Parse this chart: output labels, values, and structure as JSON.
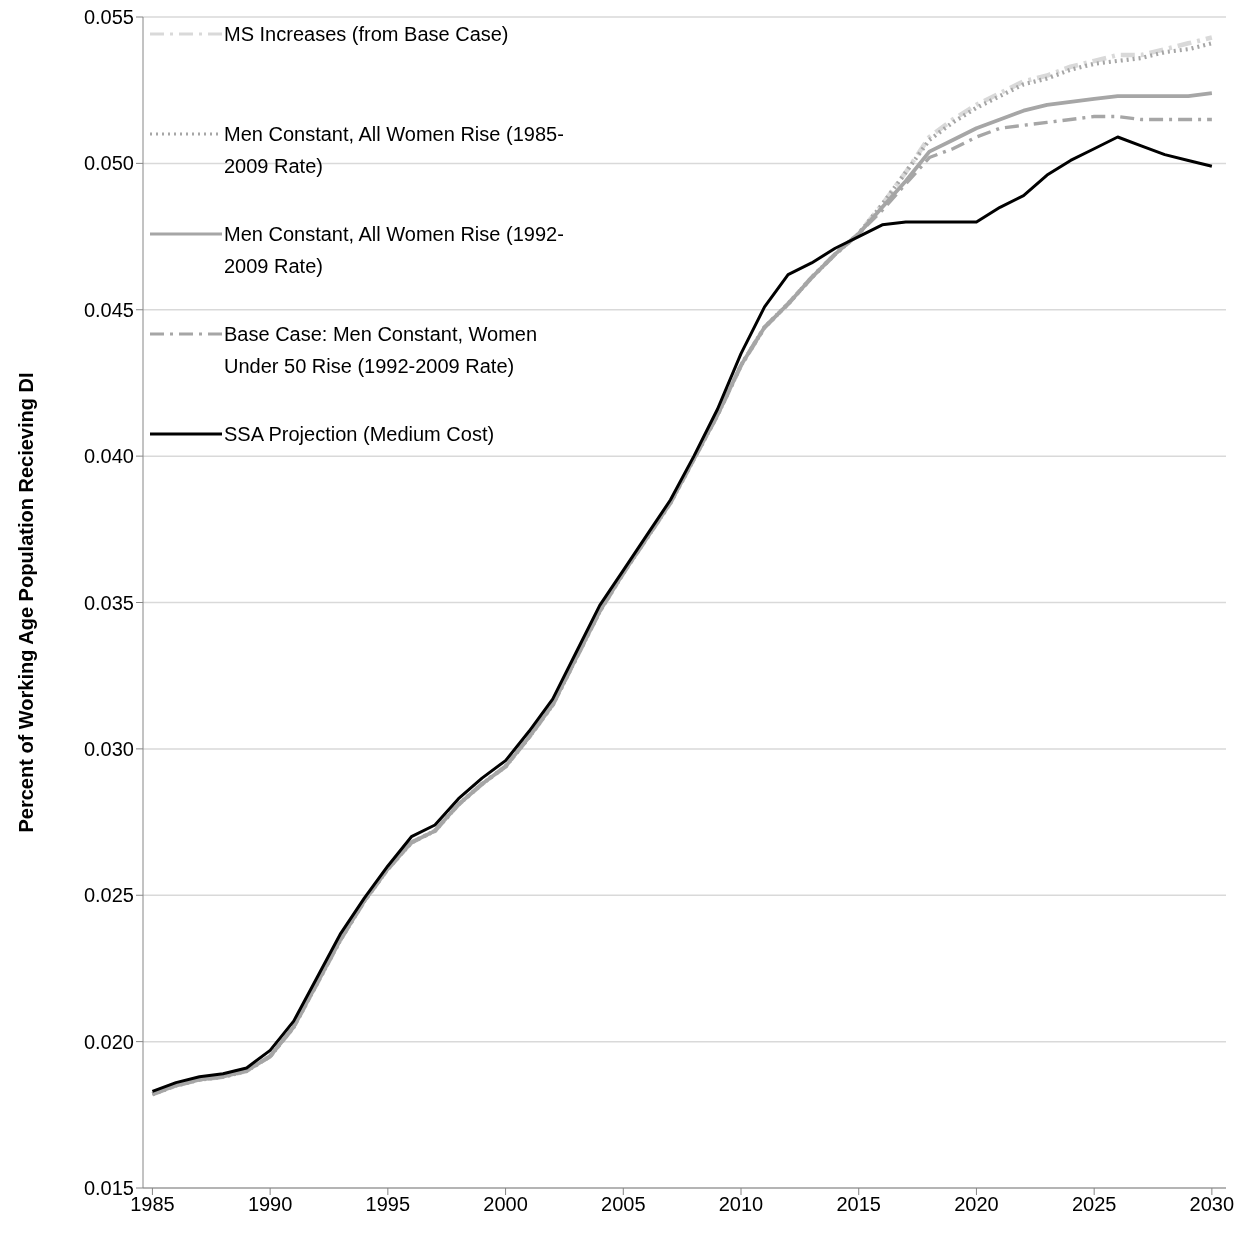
{
  "chart_data": {
    "type": "line",
    "ylabel": "Percent of Working Age Population Recieving DI",
    "x": [
      1985,
      1986,
      1987,
      1988,
      1989,
      1990,
      1991,
      1992,
      1993,
      1994,
      1995,
      1996,
      1997,
      1998,
      1999,
      2000,
      2001,
      2002,
      2003,
      2004,
      2005,
      2006,
      2007,
      2008,
      2009,
      2010,
      2011,
      2012,
      2013,
      2014,
      2015,
      2016,
      2017,
      2018,
      2019,
      2020,
      2021,
      2022,
      2023,
      2024,
      2025,
      2026,
      2027,
      2028,
      2029,
      2030
    ],
    "series": [
      {
        "name": "MS Increases (from Base Case)",
        "color": "#d9d9d9",
        "line_style": "dashed",
        "values": [
          0.0182,
          0.0185,
          0.0187,
          0.0188,
          0.019,
          0.0195,
          0.0205,
          0.022,
          0.0235,
          0.0248,
          0.0259,
          0.0268,
          0.0272,
          0.0281,
          0.0288,
          0.0294,
          0.0304,
          0.0315,
          0.0331,
          0.0347,
          0.036,
          0.0372,
          0.0384,
          0.0399,
          0.0414,
          0.0431,
          0.0444,
          0.0452,
          0.0461,
          0.0469,
          0.0476,
          0.0486,
          0.0497,
          0.0509,
          0.0515,
          0.052,
          0.0524,
          0.0528,
          0.053,
          0.0533,
          0.0535,
          0.0537,
          0.0537,
          0.0539,
          0.0541,
          0.0543
        ]
      },
      {
        "name": "Men Constant, All Women Rise (1985-2009 Rate)",
        "color": "#a6a6a6",
        "line_style": "dotted",
        "values": [
          0.0182,
          0.0185,
          0.0187,
          0.0188,
          0.019,
          0.0195,
          0.0205,
          0.022,
          0.0235,
          0.0248,
          0.0259,
          0.0268,
          0.0272,
          0.0281,
          0.0288,
          0.0294,
          0.0304,
          0.0315,
          0.0331,
          0.0347,
          0.036,
          0.0372,
          0.0384,
          0.0399,
          0.0414,
          0.0431,
          0.0444,
          0.0452,
          0.0461,
          0.0469,
          0.0476,
          0.0486,
          0.0497,
          0.0508,
          0.0514,
          0.0519,
          0.0523,
          0.0527,
          0.0529,
          0.0532,
          0.0534,
          0.0535,
          0.0536,
          0.0538,
          0.0539,
          0.0541
        ]
      },
      {
        "name": "Men Constant, All Women Rise (1992-2009 Rate)",
        "color": "#a6a6a6",
        "line_style": "solid",
        "values": [
          0.0182,
          0.0185,
          0.0187,
          0.0188,
          0.019,
          0.0195,
          0.0205,
          0.022,
          0.0235,
          0.0248,
          0.0259,
          0.0268,
          0.0272,
          0.0281,
          0.0288,
          0.0294,
          0.0304,
          0.0315,
          0.0331,
          0.0347,
          0.036,
          0.0372,
          0.0384,
          0.0399,
          0.0414,
          0.0431,
          0.0444,
          0.0452,
          0.0461,
          0.0469,
          0.0476,
          0.0485,
          0.0494,
          0.0504,
          0.0508,
          0.0512,
          0.0515,
          0.0518,
          0.052,
          0.0521,
          0.0522,
          0.0523,
          0.0523,
          0.0523,
          0.0523,
          0.0524
        ]
      },
      {
        "name": "Base Case: Men Constant, Women Under 50 Rise (1992-2009 Rate)",
        "color": "#a6a6a6",
        "line_style": "dashed",
        "values": [
          0.0182,
          0.0185,
          0.0187,
          0.0188,
          0.019,
          0.0195,
          0.0205,
          0.022,
          0.0235,
          0.0248,
          0.0259,
          0.0268,
          0.0272,
          0.0281,
          0.0288,
          0.0294,
          0.0304,
          0.0315,
          0.0331,
          0.0347,
          0.036,
          0.0372,
          0.0384,
          0.0399,
          0.0414,
          0.0431,
          0.0444,
          0.0452,
          0.0461,
          0.0469,
          0.0476,
          0.0484,
          0.0493,
          0.0502,
          0.0505,
          0.0509,
          0.0512,
          0.0513,
          0.0514,
          0.0515,
          0.0516,
          0.0516,
          0.0515,
          0.0515,
          0.0515,
          0.0515
        ]
      },
      {
        "name": "SSA Projection (Medium Cost)",
        "color": "#000000",
        "line_style": "solid",
        "values": [
          0.0183,
          0.0186,
          0.0188,
          0.0189,
          0.0191,
          0.0197,
          0.0207,
          0.0222,
          0.0237,
          0.0249,
          0.026,
          0.027,
          0.0274,
          0.0283,
          0.029,
          0.0296,
          0.0306,
          0.0317,
          0.0333,
          0.0349,
          0.0361,
          0.0373,
          0.0385,
          0.04,
          0.0416,
          0.0435,
          0.0451,
          0.0462,
          0.0466,
          0.0471,
          0.0475,
          0.0479,
          0.048,
          0.048,
          0.048,
          0.048,
          0.0485,
          0.0489,
          0.0496,
          0.0501,
          0.0505,
          0.0509,
          0.0506,
          0.0503,
          0.0501,
          0.0499
        ]
      }
    ],
    "xlim": [
      1984.6,
      2030.6
    ],
    "xticks": [
      1985,
      1990,
      1995,
      2000,
      2005,
      2010,
      2015,
      2020,
      2025,
      2030
    ],
    "ylim": [
      0.015,
      0.055
    ],
    "yticks": [
      {
        "value": 0.015,
        "label": "0.015"
      },
      {
        "value": 0.02,
        "label": "0.020"
      },
      {
        "value": 0.025,
        "label": "0.025"
      },
      {
        "value": 0.03,
        "label": "0.030"
      },
      {
        "value": 0.035,
        "label": "0.035"
      },
      {
        "value": 0.04,
        "label": "0.040"
      },
      {
        "value": 0.045,
        "label": "0.045"
      },
      {
        "value": 0.05,
        "label": "0.050"
      },
      {
        "value": 0.055,
        "label": "0.055"
      }
    ],
    "grid": "y",
    "legend": "top left",
    "marker": "none"
  }
}
